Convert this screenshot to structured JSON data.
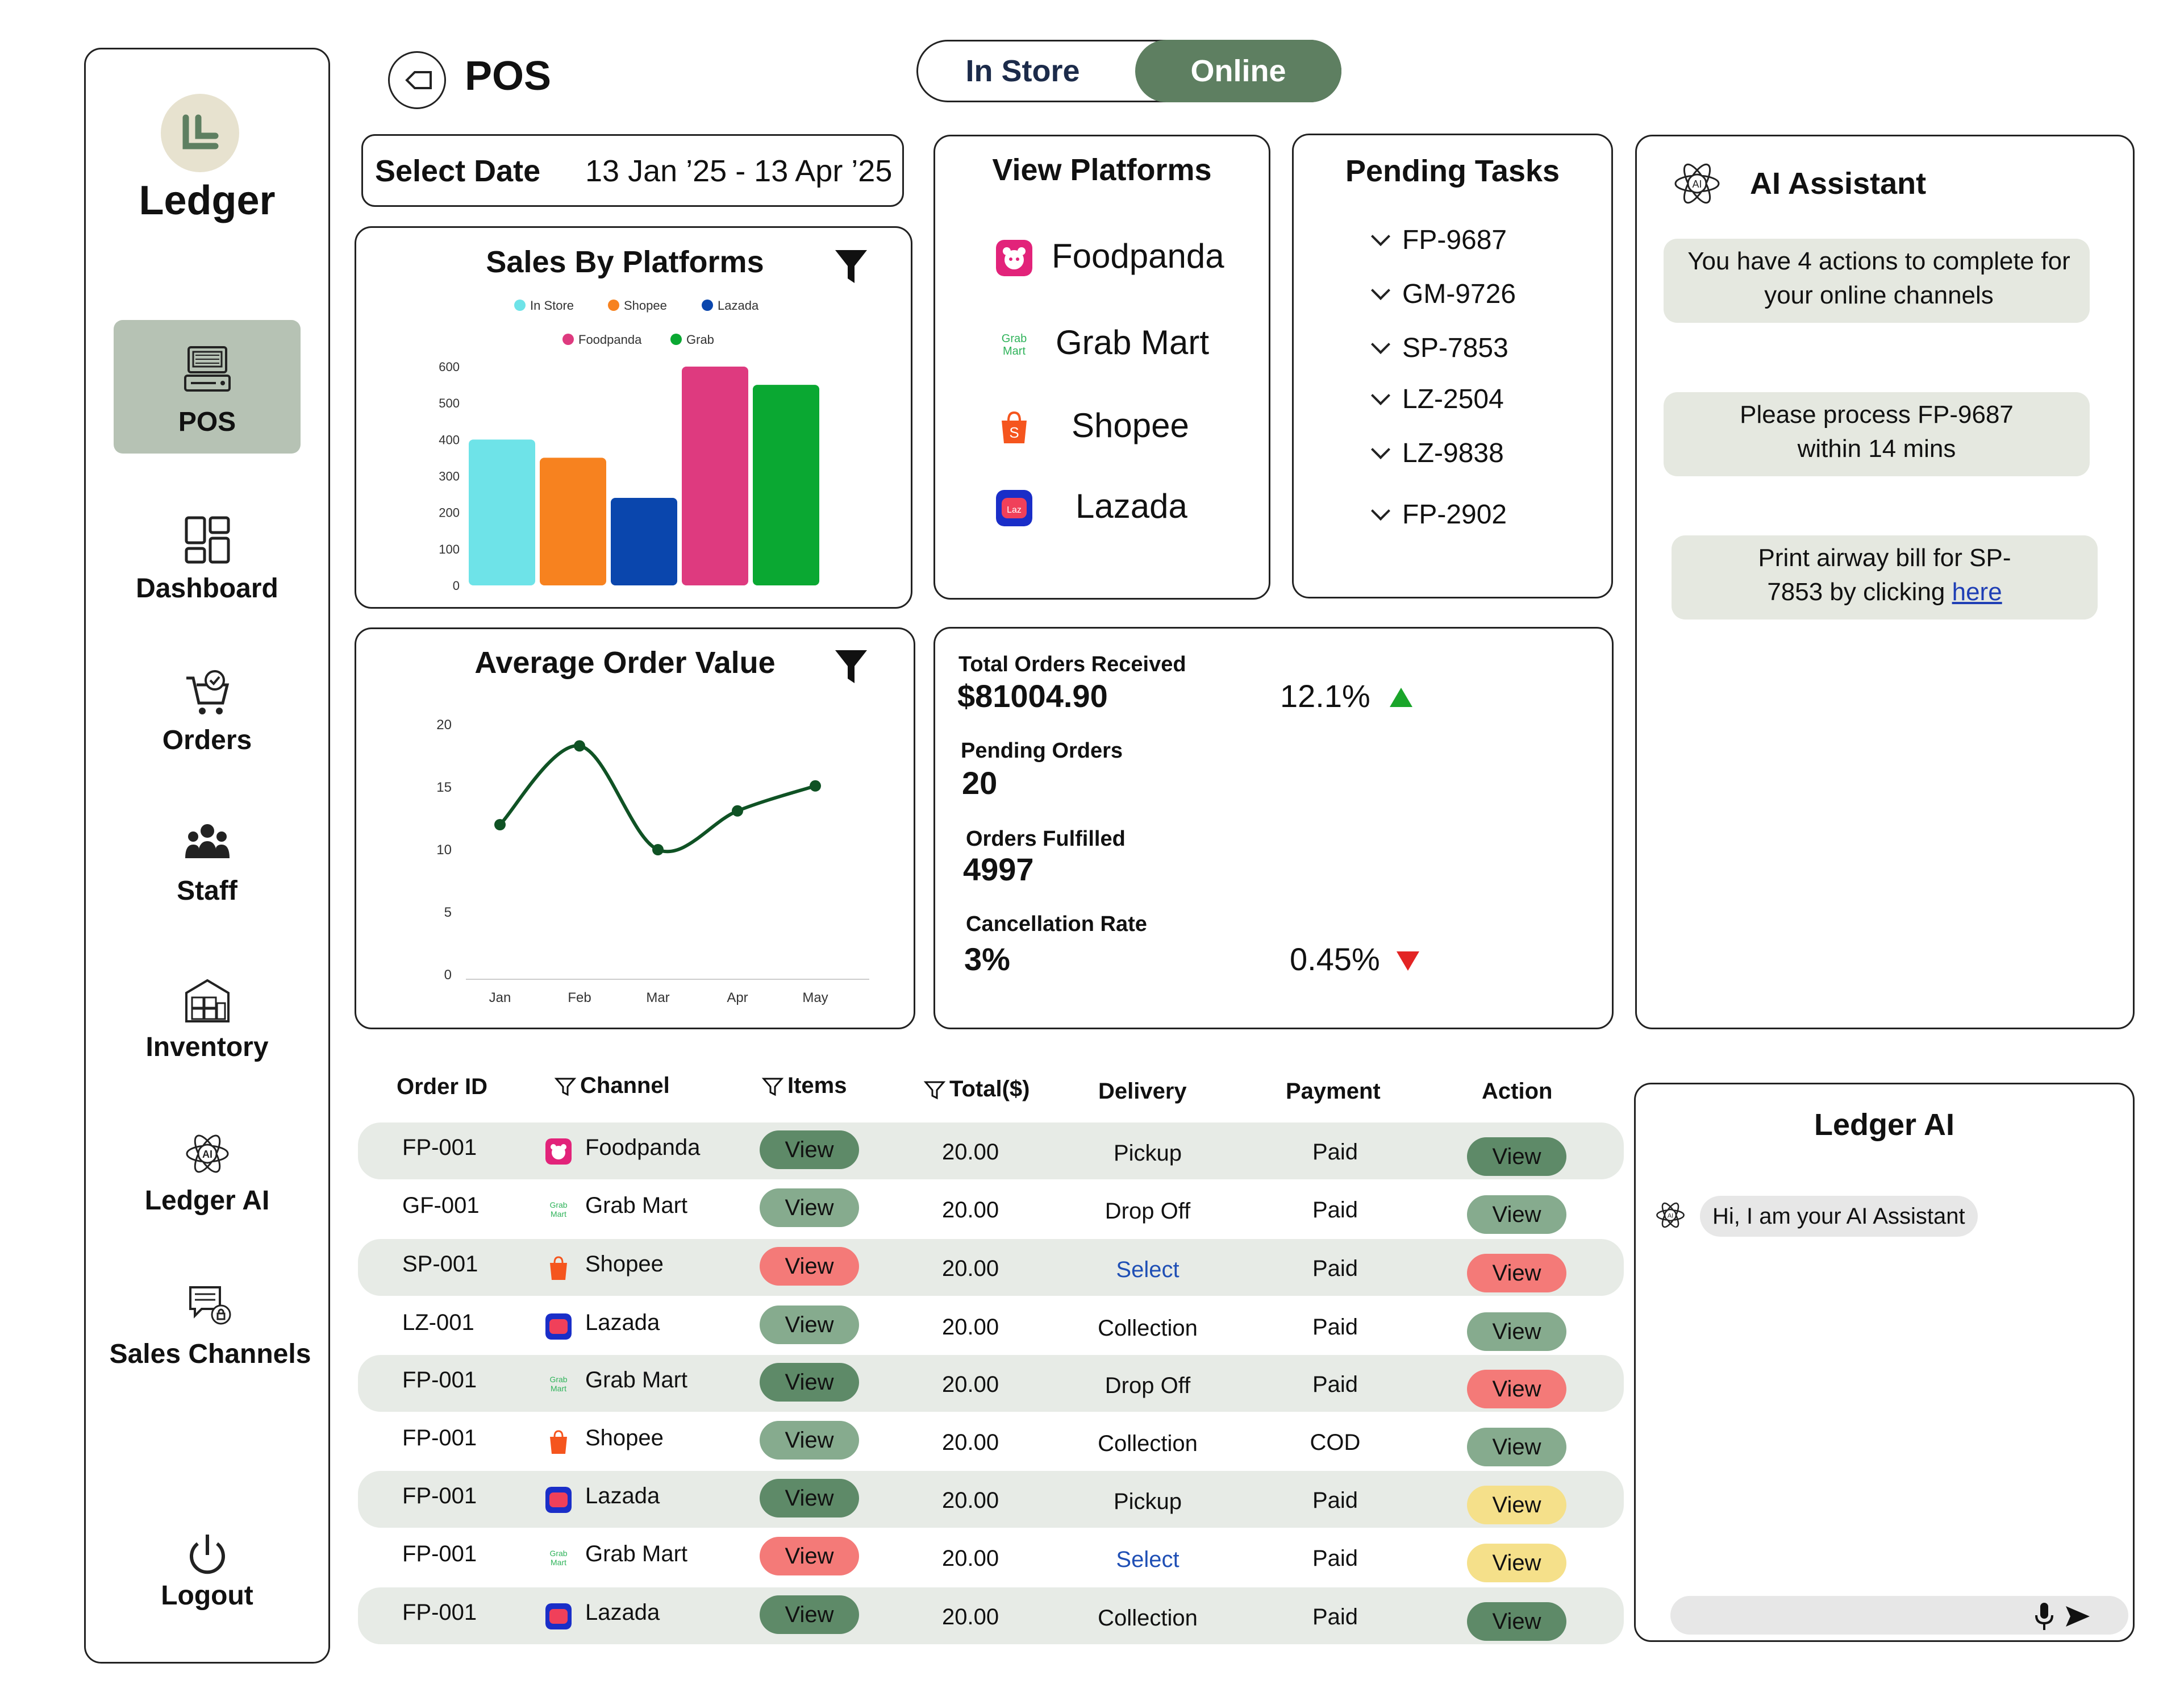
{
  "brand": {
    "name": "Ledger"
  },
  "nav": [
    {
      "label": "POS",
      "icon": "pos-terminal-icon",
      "active": true
    },
    {
      "label": "Dashboard",
      "icon": "dashboard-icon"
    },
    {
      "label": "Orders",
      "icon": "cart-icon"
    },
    {
      "label": "Staff",
      "icon": "people-icon"
    },
    {
      "label": "Inventory",
      "icon": "warehouse-icon"
    },
    {
      "label": "Ledger AI",
      "icon": "ai-icon"
    },
    {
      "label": "Sales Channels",
      "icon": "chat-channels-icon"
    }
  ],
  "logout": {
    "label": "Logout"
  },
  "header": {
    "title": "POS",
    "mode_instore": "In Store",
    "mode_online": "Online",
    "mode_selected": "Online"
  },
  "date": {
    "label": "Select Date",
    "value": "13 Jan ’25 - 13 Apr ’25"
  },
  "sales_chart": {
    "title": "Sales By Platforms",
    "chart_data": {
      "type": "bar",
      "title": "Sales By Platforms",
      "categories": [
        "In Store",
        "Shopee",
        "Lazada",
        "Foodpanda",
        "Grab"
      ],
      "values": [
        400,
        350,
        240,
        600,
        550
      ],
      "colors": [
        "#6ee3e8",
        "#f7821f",
        "#0a46ad",
        "#de3a7f",
        "#0aa832"
      ],
      "ylim": [
        0,
        600
      ],
      "yticks": [
        "0",
        "100",
        "200",
        "300",
        "400",
        "500",
        "600"
      ],
      "legend": [
        "In Store",
        "Shopee",
        "Lazada",
        "Foodpanda",
        "Grab"
      ],
      "legend_position": "top"
    }
  },
  "aov_chart": {
    "title": "Average Order Value",
    "chart_data": {
      "type": "line",
      "title": "Average Order Value",
      "categories": [
        "Jan",
        "Feb",
        "Mar",
        "Apr",
        "May"
      ],
      "values": [
        12,
        18.3,
        10,
        13.1,
        15.1
      ],
      "color": "#0f5224",
      "ylim": [
        0,
        20
      ],
      "yticks": [
        "0",
        "5",
        "10",
        "15",
        "20"
      ]
    }
  },
  "platforms": {
    "title": "View Platforms",
    "items": [
      {
        "label": "Foodpanda",
        "icon": "foodpanda-icon"
      },
      {
        "label": "Grab Mart",
        "icon": "grabmart-icon"
      },
      {
        "label": "Shopee",
        "icon": "shopee-icon"
      },
      {
        "label": "Lazada",
        "icon": "lazada-icon"
      }
    ]
  },
  "tasks": {
    "title": "Pending Tasks",
    "items": [
      "FP-9687",
      "GM-9726",
      "SP-7853",
      "LZ-2504",
      "LZ-9838",
      "FP-2902"
    ]
  },
  "stats": {
    "total_orders_label": "Total Orders Received",
    "total_orders_value": "$81004.90",
    "total_orders_change": "12.1%",
    "pending_label": "Pending Orders",
    "pending_value": "20",
    "fulfilled_label": "Orders Fulfilled",
    "fulfilled_value": "4997",
    "cancel_label": "Cancellation Rate",
    "cancel_value": "3%",
    "cancel_change": "0.45%",
    "up_color": "#1aa52a",
    "down_color": "#e32424"
  },
  "ai_assistant": {
    "title": "AI Assistant",
    "msg1": "You have 4 actions to complete for your online channels",
    "msg2_line1": "Please process FP-9687",
    "msg2_line2": "within 14 mins",
    "msg3_line1": "Print airway bill for SP-",
    "msg3_line2": "7853 by clicking ",
    "msg3_link": "here"
  },
  "ledger_ai": {
    "title": "Ledger AI",
    "greeting": "Hi, I am your AI Assistant"
  },
  "table": {
    "headers": {
      "order_id": "Order ID",
      "channel": "Channel",
      "items": "Items",
      "total": "Total($)",
      "delivery": "Delivery",
      "payment": "Payment",
      "action": "Action"
    },
    "rows": [
      {
        "id": "FP-001",
        "channel": "Foodpanda",
        "items": "View",
        "total": "20.00",
        "delivery": "Pickup",
        "payment": "Paid",
        "action": "View"
      },
      {
        "id": "GF-001",
        "channel": "Grab Mart",
        "items": "View",
        "total": "20.00",
        "delivery": "Drop Off",
        "payment": "Paid",
        "action": "View"
      },
      {
        "id": "SP-001",
        "channel": "Shopee",
        "items": "View",
        "total": "20.00",
        "delivery": "Select",
        "payment": "Paid",
        "action": "View"
      },
      {
        "id": "LZ-001",
        "channel": "Lazada",
        "items": "View",
        "total": "20.00",
        "delivery": "Collection",
        "payment": "Paid",
        "action": "View"
      },
      {
        "id": "FP-001",
        "channel": "Grab Mart",
        "items": "View",
        "total": "20.00",
        "delivery": "Drop Off",
        "payment": "Paid",
        "action": "View"
      },
      {
        "id": "FP-001",
        "channel": "Shopee",
        "items": "View",
        "total": "20.00",
        "delivery": "Collection",
        "payment": "COD",
        "action": "View"
      },
      {
        "id": "FP-001",
        "channel": "Lazada",
        "items": "View",
        "total": "20.00",
        "delivery": "Pickup",
        "payment": "Paid",
        "action": "View"
      },
      {
        "id": "FP-001",
        "channel": "Grab Mart",
        "items": "View",
        "total": "20.00",
        "delivery": "Select",
        "payment": "Paid",
        "action": "View"
      },
      {
        "id": "FP-001",
        "channel": "Lazada",
        "items": "View",
        "total": "20.00",
        "delivery": "Collection",
        "payment": "Paid",
        "action": "View"
      }
    ]
  },
  "colors": {
    "accent": "#5e7f61",
    "btn_dark_green": "#5e8a68",
    "btn_light_green": "#86ab8e",
    "btn_red": "#f47a78",
    "btn_yellow": "#f5e08a",
    "row_bg": "#e7ebe6"
  }
}
